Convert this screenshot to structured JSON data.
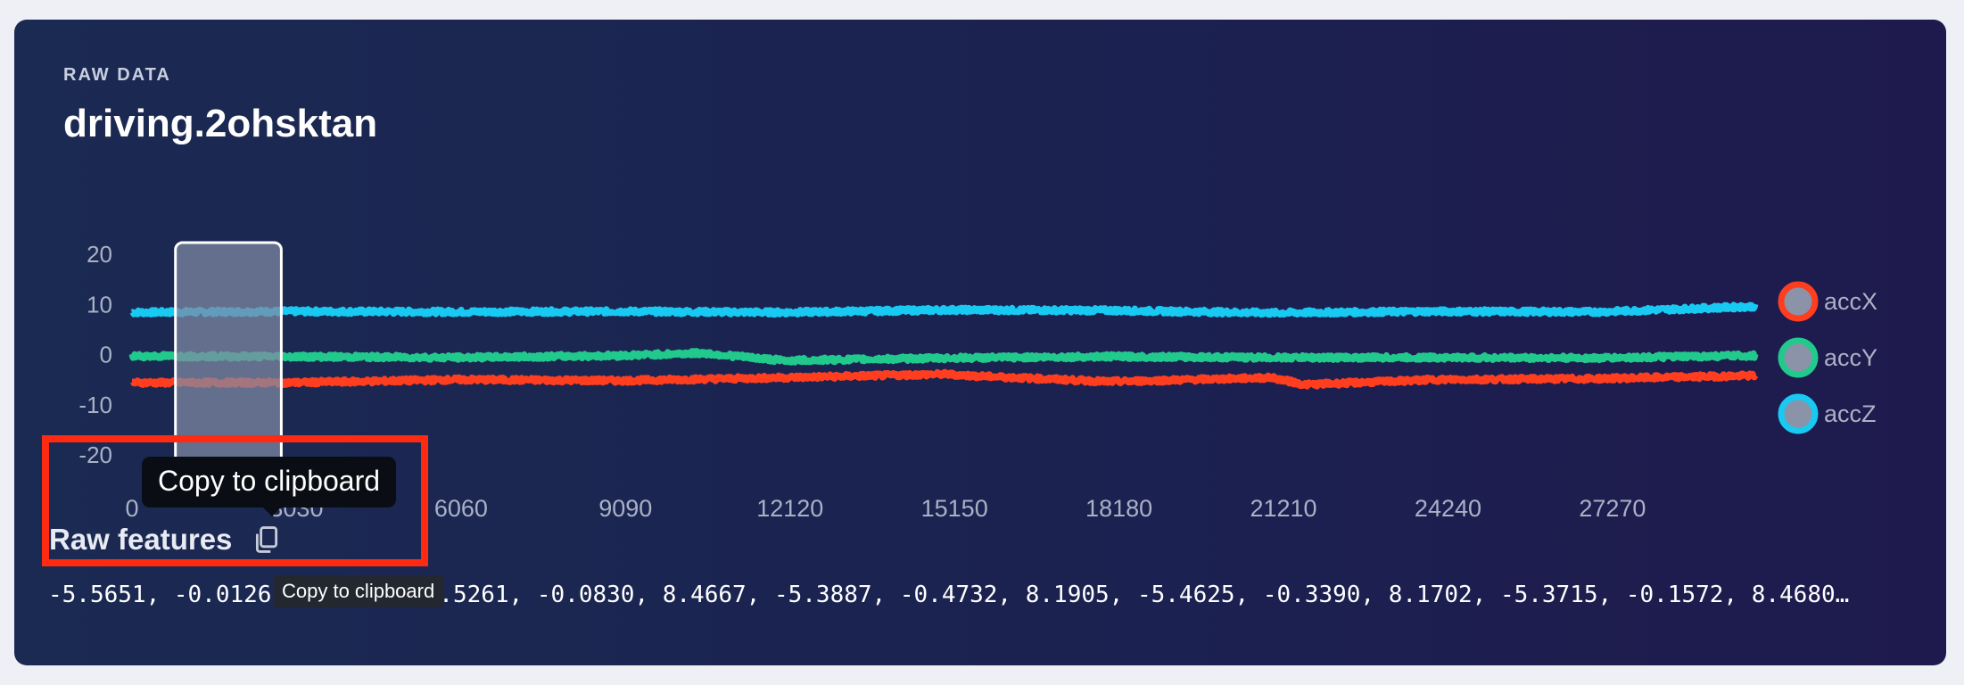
{
  "header": {
    "section_label": "RAW DATA",
    "title": "driving.2ohsktan"
  },
  "raw_features": {
    "title": "Raw features",
    "copy_tooltip": "Copy to clipboard",
    "copy_tooltip_native": "Copy to clipboard",
    "values_text": "-5.5651, -0.0126, 8.4667, -5.5261, -0.0830, 8.4667, -5.3887, -0.4732, 8.1905, -5.4625, -0.3390, 8.1702, -5.3715, -0.1572, 8.4680…"
  },
  "colors": {
    "accX": "#ff3d1f",
    "accY": "#22c98c",
    "accZ": "#18c9f2",
    "window": "#7f8aa3",
    "highlight": "#ff2a12"
  },
  "chart_data": {
    "type": "line",
    "x_ticks": [
      0,
      3030,
      6060,
      9090,
      12120,
      15150,
      18180,
      21210,
      24240,
      27270
    ],
    "x_tick_labels": [
      "0",
      "3030",
      "6060",
      "9090",
      "12120",
      "15150",
      "18180",
      "21210",
      "24240",
      "27270"
    ],
    "xlim": [
      0,
      29900
    ],
    "y_ticks": [
      20,
      10,
      0,
      -10,
      -20
    ],
    "y_tick_labels": [
      "20",
      "10",
      "0",
      "-10",
      "-20"
    ],
    "ylim": [
      -20,
      20
    ],
    "legend_position": "right",
    "selected_window": [
      800,
      2750
    ],
    "series": [
      {
        "name": "accX",
        "color": "#ff3d1f",
        "x": [
          0,
          3000,
          6000,
          9000,
          12000,
          15000,
          15400,
          18000,
          21000,
          21600,
          24000,
          27000,
          29900
        ],
        "y": [
          -5.6,
          -5.6,
          -5.0,
          -5.2,
          -4.6,
          -3.9,
          -4.2,
          -5.4,
          -4.6,
          -6.0,
          -5.0,
          -4.8,
          -4.2
        ]
      },
      {
        "name": "accY",
        "color": "#22c98c",
        "x": [
          0,
          3000,
          6000,
          9000,
          10500,
          12000,
          15000,
          18000,
          21000,
          24000,
          27000,
          29900
        ],
        "y": [
          -0.3,
          -0.4,
          -0.6,
          -0.2,
          0.3,
          -1.2,
          -0.7,
          -0.4,
          -0.6,
          -0.6,
          -0.7,
          -0.2
        ]
      },
      {
        "name": "accZ",
        "color": "#18c9f2",
        "x": [
          0,
          3000,
          6000,
          9000,
          12000,
          15000,
          18000,
          21000,
          24000,
          27000,
          29900
        ],
        "y": [
          8.4,
          8.6,
          8.5,
          8.6,
          8.4,
          8.9,
          8.8,
          8.3,
          8.6,
          8.5,
          9.6
        ]
      }
    ]
  }
}
